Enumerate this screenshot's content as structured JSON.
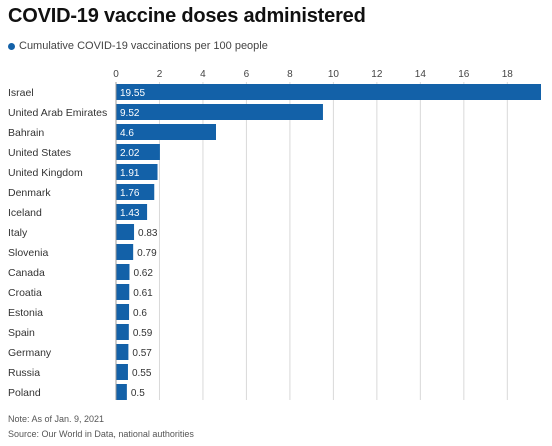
{
  "title": "COVID-19 vaccine doses administered",
  "legend_label": "Cumulative COVID-19 vaccinations per 100 people",
  "note": "Note: As of Jan. 9, 2021",
  "source": "Source: Our World in Data, national authorities",
  "colors": {
    "bar": "#1361a8",
    "grid": "#d9d9d9",
    "label_inside": "#ffffff",
    "label_outside": "#333333"
  },
  "chart_data": {
    "type": "bar",
    "orientation": "horizontal",
    "title": "COVID-19 vaccine doses administered",
    "categories": [
      "Israel",
      "United Arab Emirates",
      "Bahrain",
      "United States",
      "United Kingdom",
      "Denmark",
      "Iceland",
      "Italy",
      "Slovenia",
      "Canada",
      "Croatia",
      "Estonia",
      "Spain",
      "Germany",
      "Russia",
      "Poland"
    ],
    "series": [
      {
        "name": "Cumulative COVID-19 vaccinations per 100 people",
        "values": [
          19.55,
          9.52,
          4.6,
          2.02,
          1.91,
          1.76,
          1.43,
          0.83,
          0.79,
          0.62,
          0.61,
          0.6,
          0.59,
          0.57,
          0.55,
          0.5
        ]
      }
    ],
    "value_labels": [
      "19.55",
      "9.52",
      "4.6",
      "2.02",
      "1.91",
      "1.76",
      "1.43",
      "0.83",
      "0.79",
      "0.62",
      "0.61",
      "0.6",
      "0.59",
      "0.57",
      "0.55",
      "0.5"
    ],
    "xticks": [
      0,
      2,
      4,
      6,
      8,
      10,
      12,
      14,
      16,
      18
    ],
    "xlim": [
      0,
      19.55
    ],
    "grid": true,
    "axis_position": "top",
    "legend_position": "top-left"
  }
}
